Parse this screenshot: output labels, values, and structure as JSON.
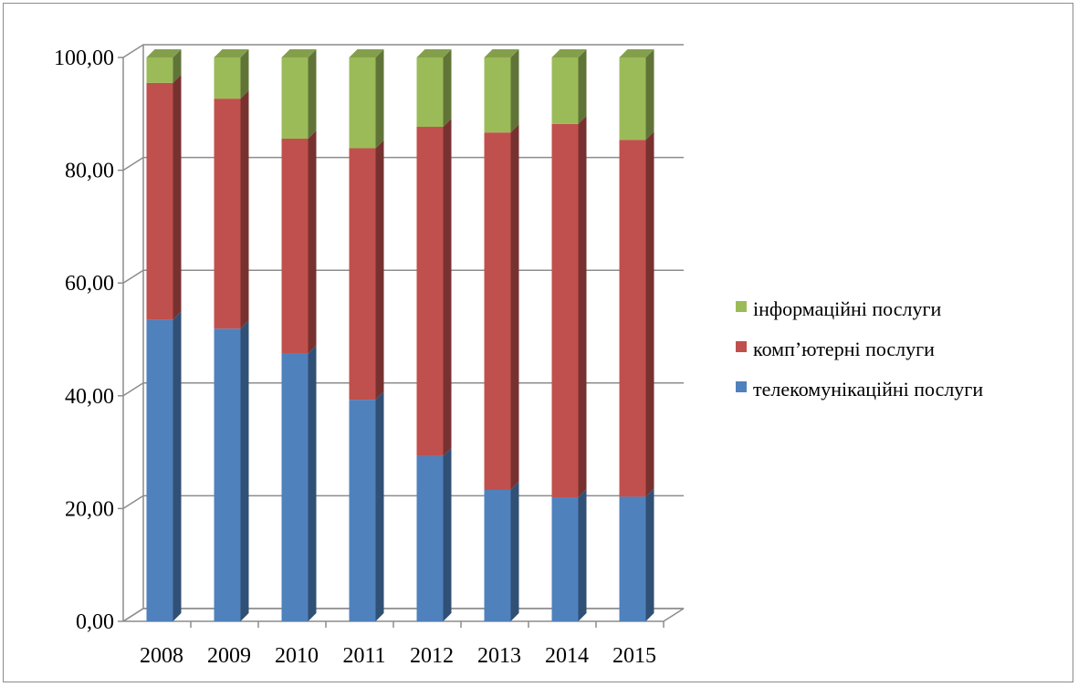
{
  "chart_data": {
    "type": "bar",
    "stacked": true,
    "three_d": true,
    "categories": [
      "2008",
      "2009",
      "2010",
      "2011",
      "2012",
      "2013",
      "2014",
      "2015"
    ],
    "series": [
      {
        "name": "телекомунікаційні послуги",
        "color": "#4F81BD",
        "values": [
          53.5,
          51.9,
          47.5,
          39.3,
          29.3,
          23.3,
          22.0,
          22.1
        ]
      },
      {
        "name": "комп’ютерні послуги",
        "color": "#C0504D",
        "values": [
          42.0,
          40.8,
          38.1,
          44.6,
          58.4,
          63.4,
          66.2,
          63.3
        ]
      },
      {
        "name": "інформаційні послуги",
        "color": "#9BBB59",
        "values": [
          4.5,
          7.3,
          14.4,
          16.1,
          12.3,
          13.3,
          11.8,
          14.6
        ]
      }
    ],
    "yticks": [
      "0,00",
      "20,00",
      "40,00",
      "60,00",
      "80,00",
      "100,00"
    ],
    "ylim": [
      0,
      100
    ],
    "grid": true,
    "legend_position": "right",
    "legend_order": [
      "інформаційні послуги",
      "комп’ютерні послуги",
      "телекомунікаційні послуги"
    ],
    "title": "",
    "xlabel": "",
    "ylabel": ""
  }
}
